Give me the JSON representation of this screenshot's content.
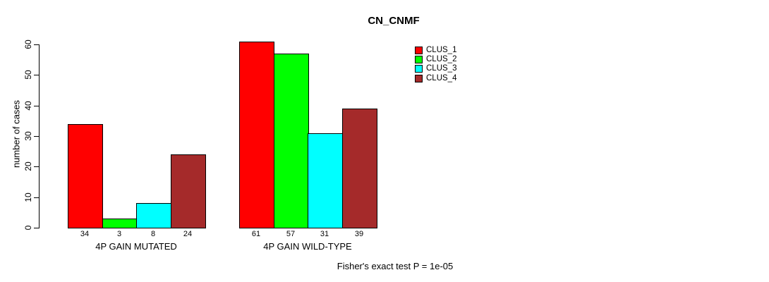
{
  "title": "CN_CNMF",
  "chart_data": {
    "type": "bar",
    "title": "CN_CNMF",
    "xlabel": "",
    "ylabel": "number of cases",
    "ylim": [
      0,
      60
    ],
    "yticks": [
      0,
      10,
      20,
      30,
      40,
      50,
      60
    ],
    "categories": [
      "4P GAIN MUTATED",
      "4P GAIN WILD-TYPE"
    ],
    "series": [
      {
        "name": "CLUS_1",
        "color": "#ff0000",
        "values": [
          34,
          61
        ]
      },
      {
        "name": "CLUS_2",
        "color": "#00ff00",
        "values": [
          3,
          57
        ]
      },
      {
        "name": "CLUS_3",
        "color": "#00ffff",
        "values": [
          8,
          31
        ]
      },
      {
        "name": "CLUS_4",
        "color": "#a52a2a",
        "values": [
          24,
          39
        ]
      }
    ],
    "bar_value_labels": [
      [
        34,
        3,
        8,
        24
      ],
      [
        61,
        57,
        31,
        39
      ]
    ],
    "annotation": "Fisher's exact test P = 1e-05",
    "legend_position": "top-right",
    "grid": false,
    "background_color": "#ffffff",
    "bar_border_color": "#000000"
  },
  "legend": {
    "items": [
      {
        "label": "CLUS_1",
        "color": "#ff0000"
      },
      {
        "label": "CLUS_2",
        "color": "#00ff00"
      },
      {
        "label": "CLUS_3",
        "color": "#00ffff"
      },
      {
        "label": "CLUS_4",
        "color": "#a52a2a"
      }
    ]
  }
}
